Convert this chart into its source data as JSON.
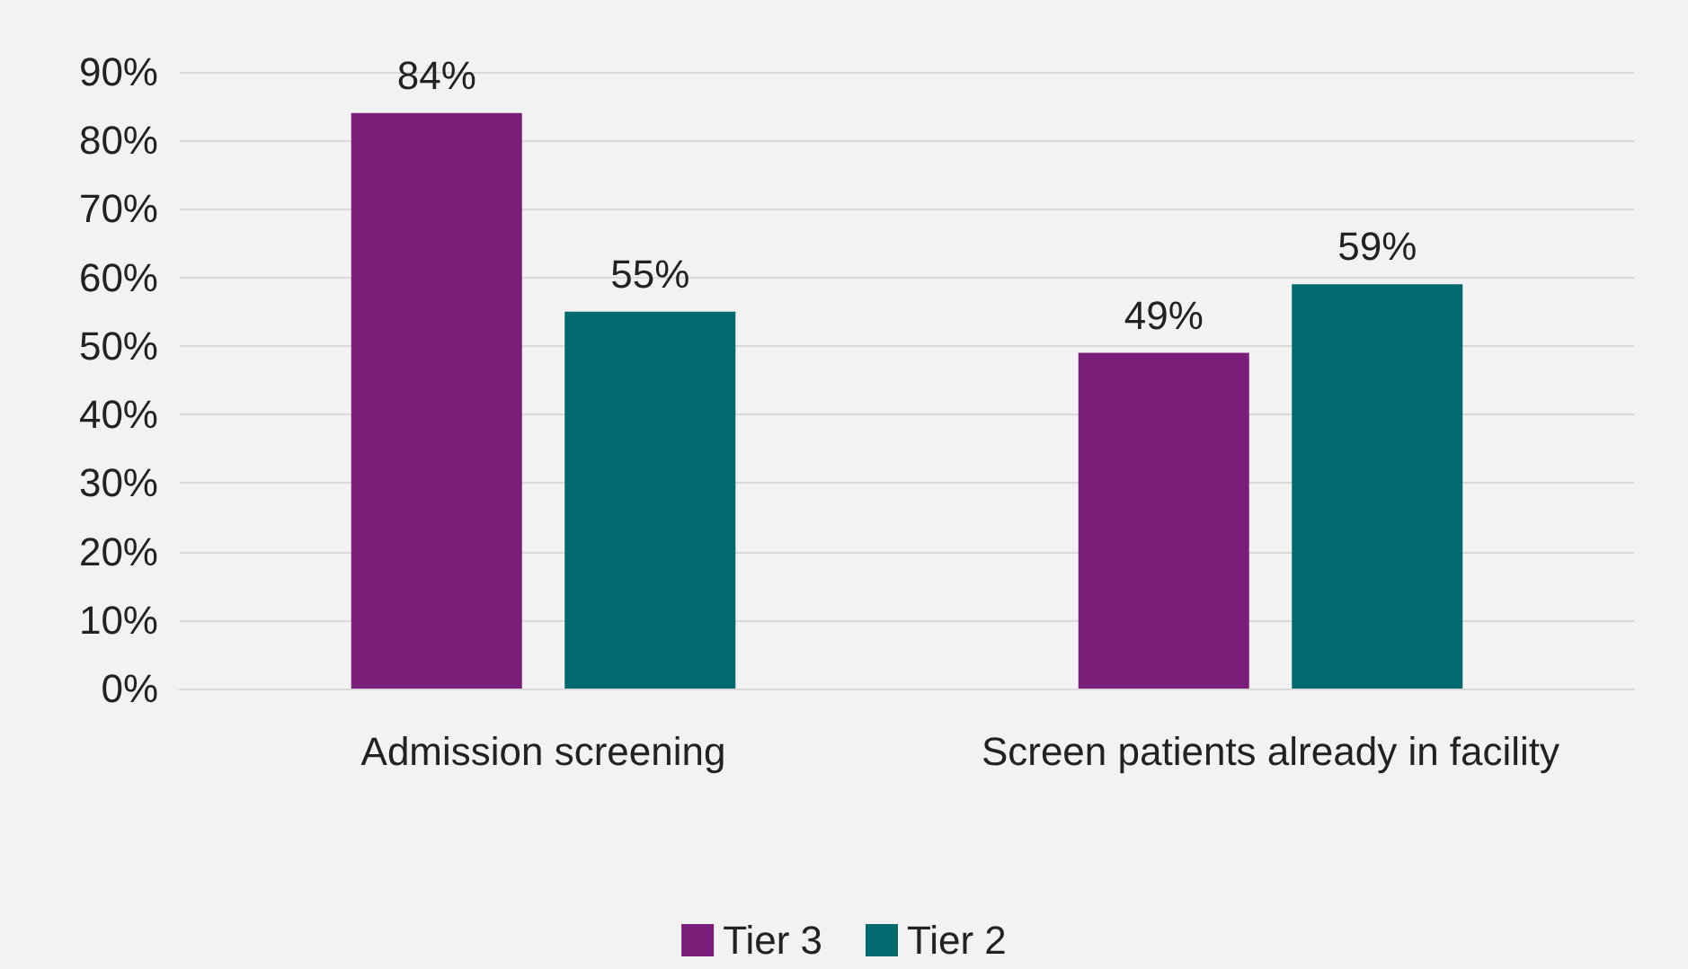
{
  "chart_data": {
    "type": "bar",
    "categories": [
      "Admission screening",
      "Screen patients already in facility"
    ],
    "series": [
      {
        "name": "Tier 3",
        "color": "#7b1e7a",
        "values": [
          84,
          49
        ],
        "value_labels": [
          "84%",
          "49%"
        ]
      },
      {
        "name": "Tier 2",
        "color": "#006a6e",
        "values": [
          55,
          59
        ],
        "value_labels": [
          "55%",
          "59%"
        ]
      }
    ],
    "ylim": [
      0,
      90
    ],
    "yticks": [
      {
        "value": 0,
        "label": "0%"
      },
      {
        "value": 10,
        "label": "10%"
      },
      {
        "value": 20,
        "label": "20%"
      },
      {
        "value": 30,
        "label": "30%"
      },
      {
        "value": 40,
        "label": "40%"
      },
      {
        "value": 50,
        "label": "50%"
      },
      {
        "value": 60,
        "label": "60%"
      },
      {
        "value": 70,
        "label": "70%"
      },
      {
        "value": 80,
        "label": "80%"
      },
      {
        "value": 90,
        "label": "90%"
      }
    ],
    "grid": "y",
    "legend": "bottom"
  }
}
